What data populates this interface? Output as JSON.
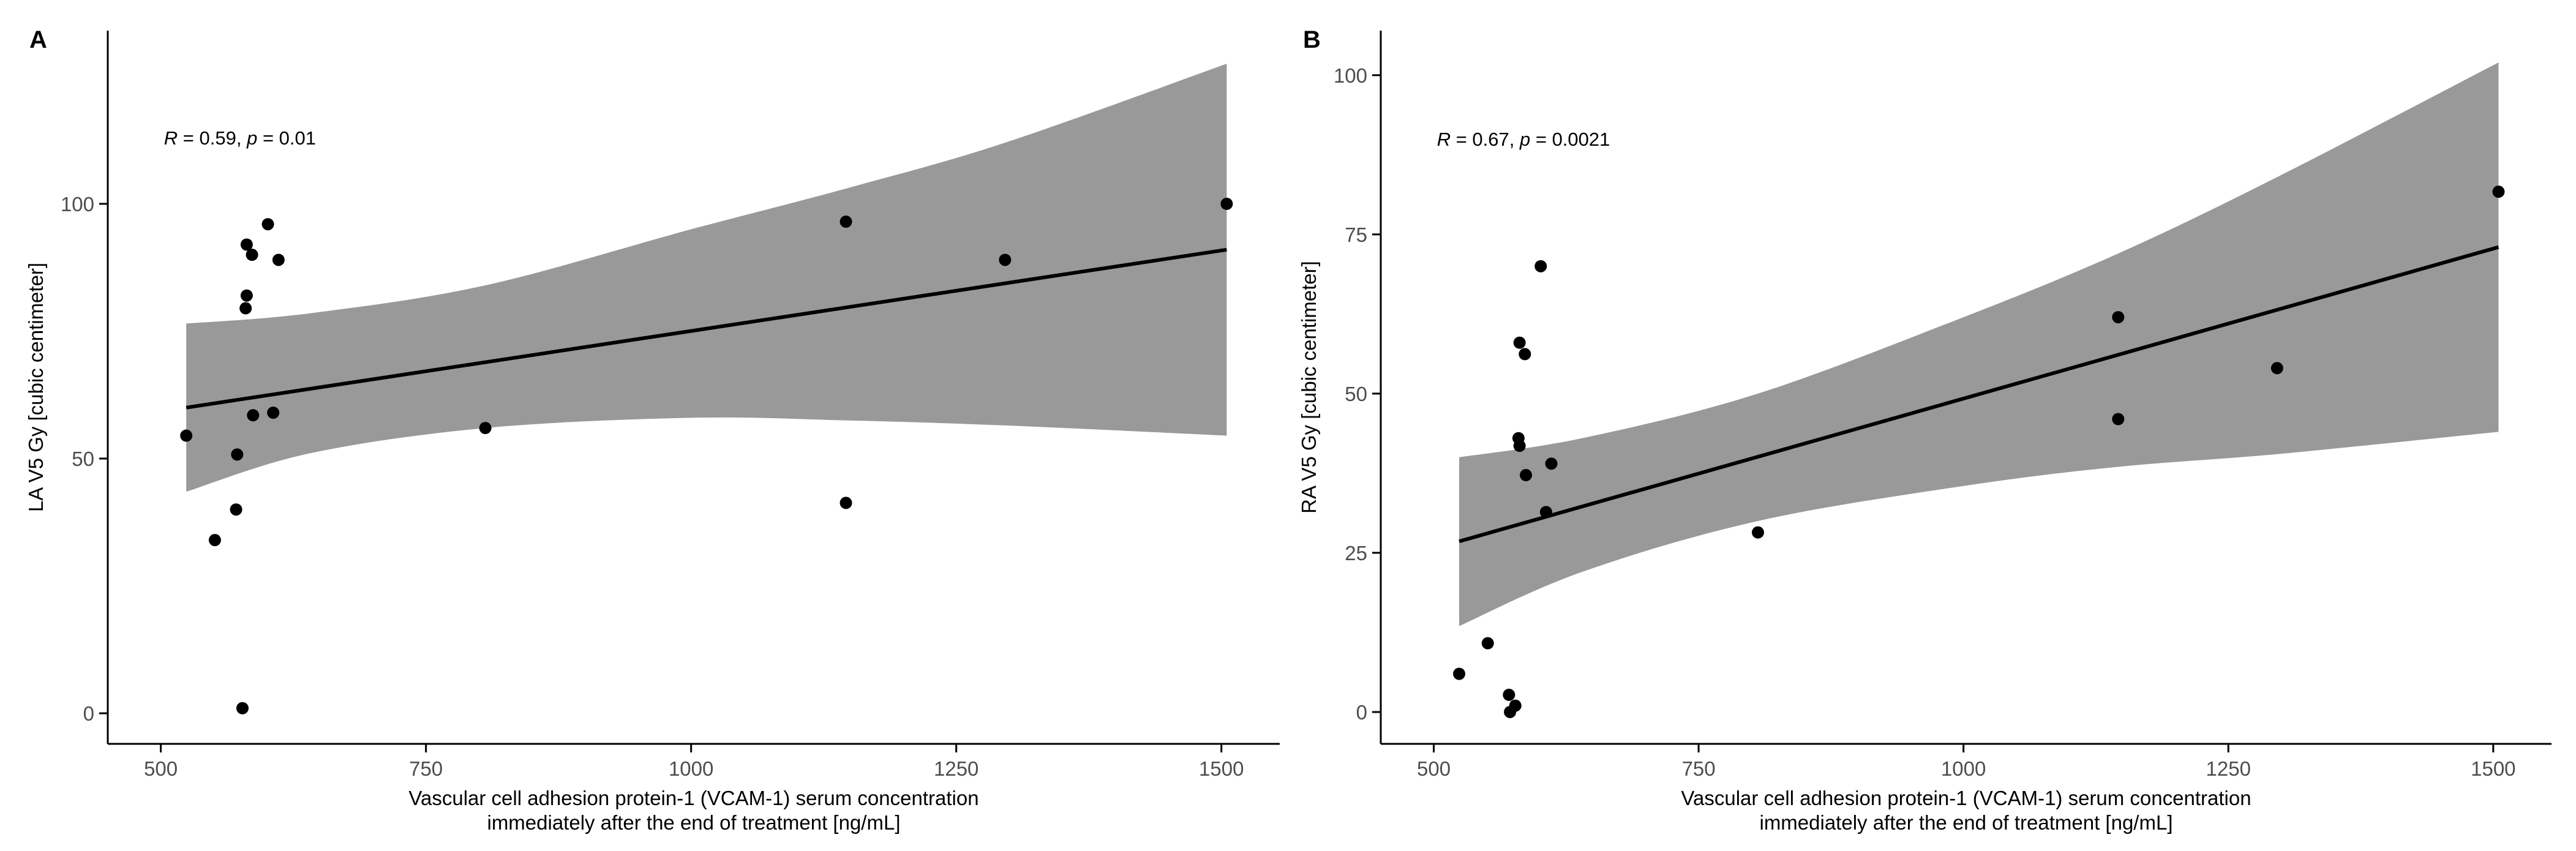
{
  "colors": {
    "background": "#ffffff",
    "confidence_band": "#999999",
    "regression_line": "#000000",
    "points": "#000000",
    "axis": "#000000"
  },
  "chart_data": [
    {
      "type": "scatter",
      "panel_label": "A",
      "title": "",
      "xlabel_line1": "Vascular cell adhesion protein-1 (VCAM-1) serum concentration",
      "xlabel_line2": "immediately after the end of treatment [ng/mL]",
      "ylabel": "LA V5 Gy [cubic centimeter]",
      "xlim": [
        450,
        1555
      ],
      "ylim": [
        -6,
        134
      ],
      "x_ticks": [
        500,
        750,
        1000,
        1250,
        1500
      ],
      "x_tick_labels": [
        "500",
        "750",
        "1000",
        "1250",
        "1500"
      ],
      "y_ticks": [
        0,
        50,
        100
      ],
      "y_tick_labels": [
        "0",
        "50",
        "100"
      ],
      "stat": {
        "r_symbol": "R",
        "r_text": " = 0.59, ",
        "p_symbol": "p",
        "p_text": " = 0.01"
      },
      "stat_position_data": [
        503,
        113
      ],
      "points": [
        {
          "x": 524,
          "y": 54.5
        },
        {
          "x": 551,
          "y": 34
        },
        {
          "x": 571,
          "y": 40
        },
        {
          "x": 572,
          "y": 50.8
        },
        {
          "x": 577,
          "y": 1
        },
        {
          "x": 580,
          "y": 79.5
        },
        {
          "x": 581,
          "y": 82
        },
        {
          "x": 581,
          "y": 92
        },
        {
          "x": 586,
          "y": 90
        },
        {
          "x": 587,
          "y": 58.5
        },
        {
          "x": 601,
          "y": 96
        },
        {
          "x": 606,
          "y": 59
        },
        {
          "x": 611,
          "y": 89
        },
        {
          "x": 806,
          "y": 56
        },
        {
          "x": 1146,
          "y": 96.5
        },
        {
          "x": 1146,
          "y": 41.3
        },
        {
          "x": 1296,
          "y": 89
        },
        {
          "x": 1505,
          "y": 100
        }
      ],
      "fit": {
        "x_start": 524,
        "y_start": 60,
        "x_end": 1505,
        "y_end": 91
      },
      "band": {
        "x": [
          524,
          640,
          806,
          1000,
          1146,
          1296,
          1505
        ],
        "lower": [
          43.5,
          51,
          56,
          58,
          57.5,
          56.5,
          54.5
        ],
        "upper": [
          76.5,
          78.5,
          84,
          95,
          103,
          112,
          127.5
        ]
      }
    },
    {
      "type": "scatter",
      "panel_label": "B",
      "title": "",
      "xlabel_line1": "Vascular cell adhesion protein-1 (VCAM-1) serum concentration",
      "xlabel_line2": "immediately after the end of treatment [ng/mL]",
      "ylabel": "RA V5 Gy [cubic centimeter]",
      "xlim": [
        450,
        1555
      ],
      "ylim": [
        -5,
        107
      ],
      "x_ticks": [
        500,
        750,
        1000,
        1250,
        1500
      ],
      "x_tick_labels": [
        "500",
        "750",
        "1000",
        "1250",
        "1500"
      ],
      "y_ticks": [
        0,
        25,
        50,
        75,
        100
      ],
      "y_tick_labels": [
        "0",
        "25",
        "50",
        "75",
        "100"
      ],
      "stat": {
        "r_symbol": "R",
        "r_text": " = 0.67, ",
        "p_symbol": "p",
        "p_text": " = 0.0021"
      },
      "stat_position_data": [
        503,
        90
      ],
      "points": [
        {
          "x": 524,
          "y": 6
        },
        {
          "x": 551,
          "y": 10.8
        },
        {
          "x": 571,
          "y": 2.7
        },
        {
          "x": 572,
          "y": 0
        },
        {
          "x": 577,
          "y": 1
        },
        {
          "x": 580,
          "y": 43
        },
        {
          "x": 581,
          "y": 58
        },
        {
          "x": 581,
          "y": 41.8
        },
        {
          "x": 586,
          "y": 56.2
        },
        {
          "x": 587,
          "y": 37.2
        },
        {
          "x": 601,
          "y": 70
        },
        {
          "x": 606,
          "y": 31.4
        },
        {
          "x": 611,
          "y": 39
        },
        {
          "x": 806,
          "y": 28.2
        },
        {
          "x": 1146,
          "y": 62
        },
        {
          "x": 1146,
          "y": 46
        },
        {
          "x": 1296,
          "y": 54
        },
        {
          "x": 1505,
          "y": 81.7
        }
      ],
      "fit": {
        "x_start": 524,
        "y_start": 26.8,
        "x_end": 1505,
        "y_end": 73
      },
      "band": {
        "x": [
          524,
          640,
          806,
          1000,
          1146,
          1296,
          1505
        ],
        "lower": [
          13.5,
          22,
          30,
          35.5,
          38.5,
          40.5,
          44
        ],
        "upper": [
          40,
          43,
          50,
          62,
          72,
          84,
          102
        ]
      }
    }
  ]
}
